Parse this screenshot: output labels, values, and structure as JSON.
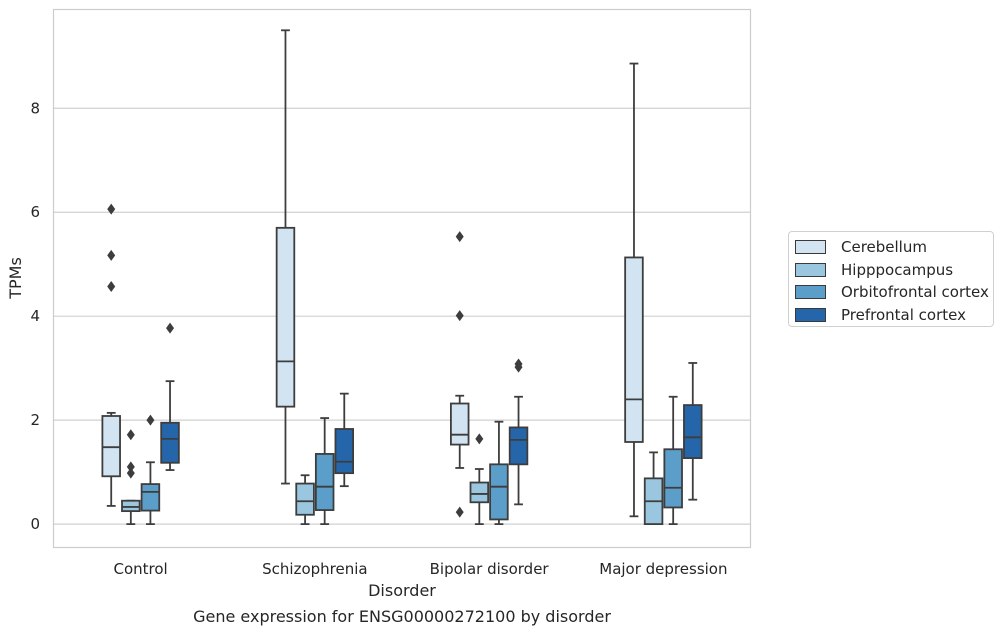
{
  "chart_data": {
    "type": "box",
    "title": "",
    "caption": "Gene expression for ENSG00000272100 by disorder",
    "xlabel": "Disorder",
    "ylabel": "TPMs",
    "ylim": [
      -0.45,
      9.9
    ],
    "yticks": [
      0,
      2,
      4,
      6,
      8
    ],
    "grid": "horizontal",
    "legend_position": "right",
    "categories": [
      "Control",
      "Schizophrenia",
      "Bipolar disorder",
      "Major depression"
    ],
    "series": [
      {
        "name": "Cerebellum",
        "color": "#d2e3f2",
        "boxes": [
          {
            "whisker_low": 0.35,
            "q1": 0.92,
            "median": 1.48,
            "q3": 2.08,
            "whisker_high": 2.14,
            "outliers": [
              4.57,
              5.17,
              6.06
            ]
          },
          {
            "whisker_low": 0.78,
            "q1": 2.26,
            "median": 3.13,
            "q3": 5.7,
            "whisker_high": 9.5,
            "outliers": []
          },
          {
            "whisker_low": 1.08,
            "q1": 1.53,
            "median": 1.72,
            "q3": 2.32,
            "whisker_high": 2.47,
            "outliers": [
              0.23,
              4.01,
              5.53
            ]
          },
          {
            "whisker_low": 0.15,
            "q1": 1.58,
            "median": 2.4,
            "q3": 5.13,
            "whisker_high": 8.86,
            "outliers": []
          }
        ]
      },
      {
        "name": "Hipppocampus",
        "color": "#9ac6e0",
        "boxes": [
          {
            "whisker_low": 0.0,
            "q1": 0.25,
            "median": 0.33,
            "q3": 0.45,
            "whisker_high": 0.45,
            "outliers": [
              0.98,
              1.1,
              1.72
            ]
          },
          {
            "whisker_low": 0.0,
            "q1": 0.18,
            "median": 0.44,
            "q3": 0.78,
            "whisker_high": 0.94,
            "outliers": []
          },
          {
            "whisker_low": 0.0,
            "q1": 0.42,
            "median": 0.58,
            "q3": 0.8,
            "whisker_high": 1.06,
            "outliers": [
              1.64
            ]
          },
          {
            "whisker_low": 0.0,
            "q1": 0.0,
            "median": 0.44,
            "q3": 0.88,
            "whisker_high": 1.38,
            "outliers": []
          }
        ]
      },
      {
        "name": "Orbitofrontal cortex",
        "color": "#5a9ec9",
        "boxes": [
          {
            "whisker_low": 0.0,
            "q1": 0.26,
            "median": 0.62,
            "q3": 0.77,
            "whisker_high": 1.19,
            "outliers": [
              2.0
            ]
          },
          {
            "whisker_low": 0.0,
            "q1": 0.27,
            "median": 0.72,
            "q3": 1.35,
            "whisker_high": 2.04,
            "outliers": []
          },
          {
            "whisker_low": 0.0,
            "q1": 0.09,
            "median": 0.72,
            "q3": 1.15,
            "whisker_high": 1.97,
            "outliers": []
          },
          {
            "whisker_low": 0.0,
            "q1": 0.32,
            "median": 0.7,
            "q3": 1.44,
            "whisker_high": 2.45,
            "outliers": []
          }
        ]
      },
      {
        "name": "Prefrontal cortex",
        "color": "#2566aa",
        "boxes": [
          {
            "whisker_low": 1.04,
            "q1": 1.18,
            "median": 1.64,
            "q3": 1.95,
            "whisker_high": 2.75,
            "outliers": [
              3.77
            ]
          },
          {
            "whisker_low": 0.73,
            "q1": 0.98,
            "median": 1.2,
            "q3": 1.83,
            "whisker_high": 2.51,
            "outliers": []
          },
          {
            "whisker_low": 0.38,
            "q1": 1.15,
            "median": 1.62,
            "q3": 1.86,
            "whisker_high": 2.45,
            "outliers": [
              3.02,
              3.08
            ]
          },
          {
            "whisker_low": 0.47,
            "q1": 1.27,
            "median": 1.67,
            "q3": 2.29,
            "whisker_high": 3.1,
            "outliers": []
          }
        ]
      }
    ]
  }
}
